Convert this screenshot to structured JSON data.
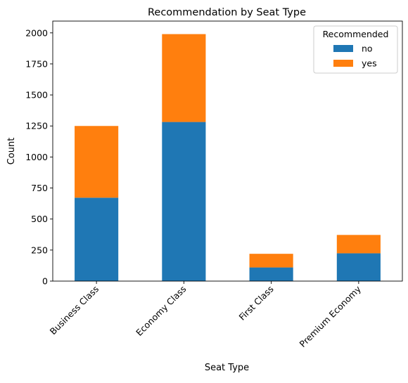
{
  "chart_data": {
    "type": "bar",
    "stacked": true,
    "title": "Recommendation by Seat Type",
    "xlabel": "Seat Type",
    "ylabel": "Count",
    "categories": [
      "Business Class",
      "Economy Class",
      "First Class",
      "Premium Economy"
    ],
    "series": [
      {
        "name": "no",
        "values": [
          672,
          1282,
          110,
          224
        ],
        "color": "#1f77b4"
      },
      {
        "name": "yes",
        "values": [
          578,
          708,
          110,
          148
        ],
        "color": "#ff7f0e"
      }
    ],
    "ylim": [
      0,
      2095
    ],
    "yticks": [
      0,
      250,
      500,
      750,
      1000,
      1250,
      1500,
      1750,
      2000
    ],
    "grid": false,
    "legend": {
      "title": "Recommended",
      "placement": "top-right"
    },
    "x_tick_rotation_deg": 45
  }
}
